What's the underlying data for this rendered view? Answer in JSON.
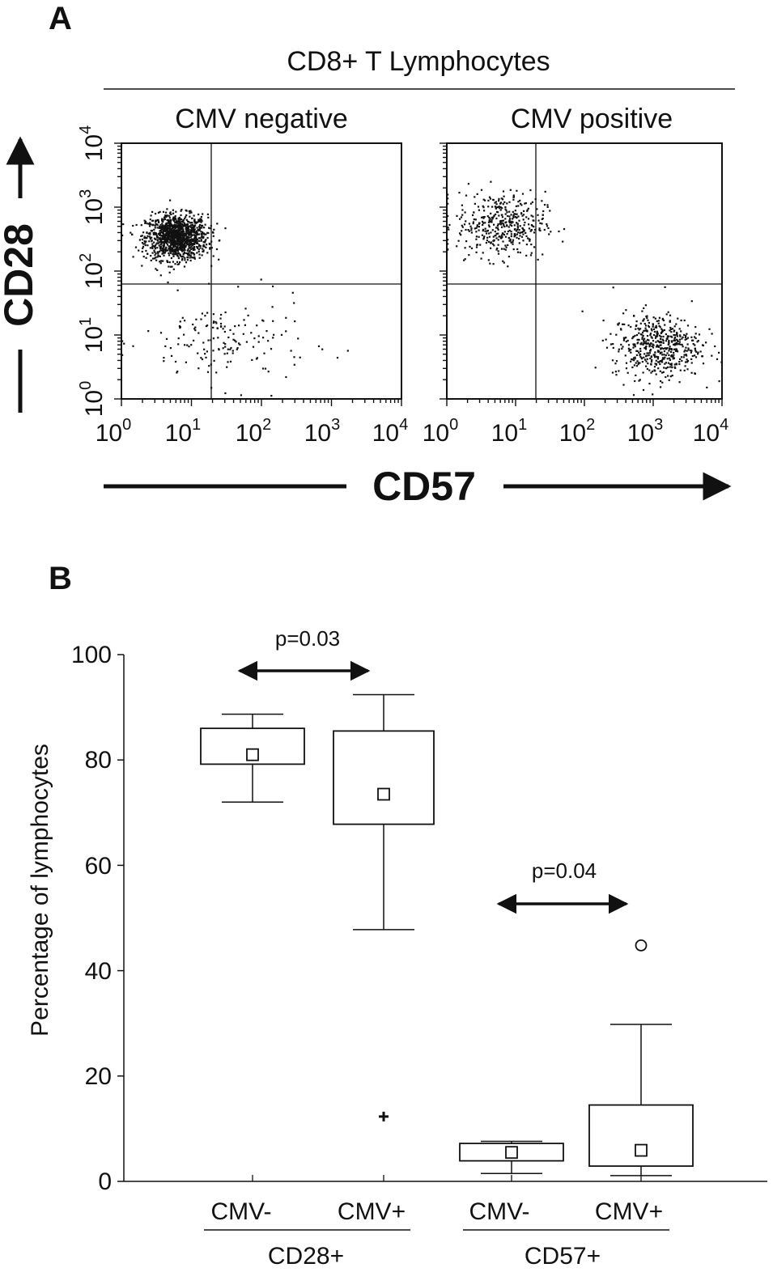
{
  "panel_a": {
    "letter": "A",
    "header": "CD8+ T Lymphocytes",
    "y_axis_label": "CD28",
    "x_axis_label": "CD57",
    "plots": [
      {
        "title": "CMV negative"
      },
      {
        "title": "CMV positive"
      }
    ],
    "x_ticks": [
      {
        "base": "10",
        "exp": "0"
      },
      {
        "base": "10",
        "exp": "1"
      },
      {
        "base": "10",
        "exp": "2"
      },
      {
        "base": "10",
        "exp": "3"
      },
      {
        "base": "10",
        "exp": "4"
      }
    ],
    "y_ticks": [
      {
        "base": "10",
        "exp": "0"
      },
      {
        "base": "10",
        "exp": "1"
      },
      {
        "base": "10",
        "exp": "2"
      },
      {
        "base": "10",
        "exp": "3"
      },
      {
        "base": "10",
        "exp": "4"
      }
    ]
  },
  "panel_b": {
    "letter": "B",
    "y_axis_label": "Percentage of lymphocytes",
    "y_ticks": [
      "0",
      "20",
      "40",
      "60",
      "80",
      "100"
    ],
    "group_labels": [
      "CMV-",
      "CMV+",
      "CMV-",
      "CMV+"
    ],
    "category_labels": [
      "CD28+",
      "CD57+"
    ],
    "comparisons": [
      {
        "label": "p=0.03"
      },
      {
        "label": "p=0.04"
      }
    ]
  },
  "chart_data": [
    {
      "type": "scatter",
      "title": "CMV negative",
      "xlabel": "CD57",
      "ylabel": "CD28",
      "x_scale": "log",
      "y_scale": "log",
      "xlim": [
        1,
        10000
      ],
      "ylim": [
        1,
        10000
      ],
      "quadrant_gates": {
        "x": 20,
        "y": 63
      },
      "populations": [
        {
          "name": "",
          "center": [
            6,
            350
          ],
          "spread": "dense",
          "n": 1200
        },
        {
          "name": "",
          "center": [
            30,
            8
          ],
          "spread": "sparse",
          "n": 160
        }
      ]
    },
    {
      "type": "scatter",
      "title": "CMV positive",
      "xlabel": "CD57",
      "ylabel": "CD28",
      "x_scale": "log",
      "y_scale": "log",
      "xlim": [
        1,
        10000
      ],
      "ylim": [
        1,
        10000
      ],
      "quadrant_gates": {
        "x": 20,
        "y": 63
      },
      "populations": [
        {
          "name": "",
          "center": [
            6,
            550
          ],
          "spread": "medium",
          "n": 420
        },
        {
          "name": "",
          "center": [
            1100,
            7
          ],
          "spread": "medium",
          "n": 520
        }
      ]
    },
    {
      "type": "box",
      "ylabel": "Percentage of lymphocytes",
      "ylim": [
        0,
        100
      ],
      "categories": [
        "CMV-",
        "CMV+",
        "CMV-",
        "CMV+"
      ],
      "groups": [
        "CD28+",
        "CD28+",
        "CD57+",
        "CD57+"
      ],
      "boxes": [
        {
          "whisker_low": 72,
          "q1": 79.2,
          "median": 81,
          "q3": 86,
          "whisker_high": 88.7,
          "mean": 81,
          "outliers": []
        },
        {
          "whisker_low": 47.8,
          "q1": 67.8,
          "median": 73.5,
          "q3": 85.5,
          "whisker_high": 92.4,
          "mean": 73.5,
          "outliers": [
            12.3
          ]
        },
        {
          "whisker_low": 1.5,
          "q1": 3.9,
          "median": 5.5,
          "q3": 7.2,
          "whisker_high": 7.6,
          "mean": 5.5,
          "outliers": []
        },
        {
          "whisker_low": 1.1,
          "q1": 2.9,
          "median": 5.9,
          "q3": 14.5,
          "whisker_high": 29.8,
          "mean": 5.9,
          "outliers": [
            44.8
          ]
        }
      ],
      "comparisons": [
        {
          "pair": [
            0,
            1
          ],
          "p_value": "p=0.03"
        },
        {
          "pair": [
            2,
            3
          ],
          "p_value": "p=0.04"
        }
      ]
    }
  ]
}
